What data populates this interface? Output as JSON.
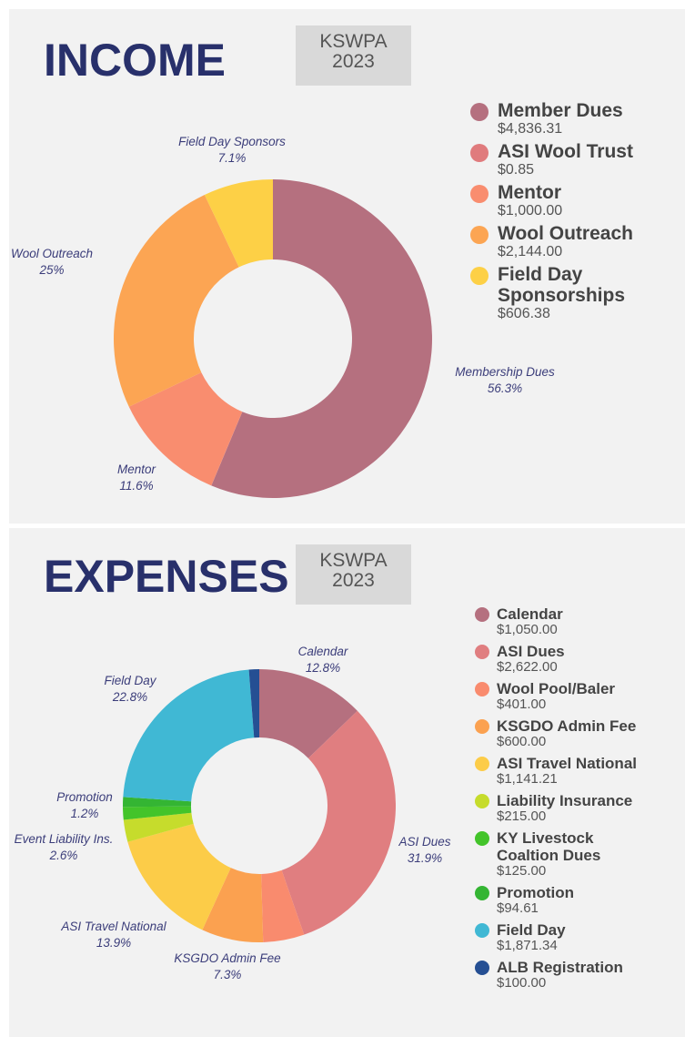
{
  "chart_data": [
    {
      "type": "pie",
      "donut": true,
      "title": "INCOME",
      "badge": [
        "KSWPA",
        "2023"
      ],
      "categories": [
        "Member Dues",
        "ASI Wool Trust",
        "Mentor",
        "Wool Outreach",
        "Field Day Sponsorships"
      ],
      "values": [
        4836.31,
        0.85,
        1000.0,
        2144.0,
        606.38
      ],
      "value_labels": [
        "$4,836.31",
        "$0.85",
        "$1,000.00",
        "$2,144.00",
        "$606.38"
      ],
      "colors": [
        "#b5707f",
        "#e07b7d",
        "#f98d6f",
        "#fca553",
        "#fdd046"
      ],
      "slice_names": [
        "Membership Dues",
        null,
        "Mentor",
        "Wool Outreach",
        "Field Day Sponsors"
      ],
      "slice_percents": [
        56.3,
        null,
        11.6,
        25,
        7.1
      ],
      "slice_percent_labels": [
        "56.3%",
        null,
        "11.6%",
        "25%",
        "7.1%"
      ]
    },
    {
      "type": "pie",
      "donut": true,
      "title": "EXPENSES",
      "badge": [
        "KSWPA",
        "2023"
      ],
      "categories": [
        "Calendar",
        "ASI Dues",
        "Wool Pool/Baler",
        "KSGDO Admin Fee",
        "ASI Travel National",
        "Liability Insurance",
        "KY Livestock Coaltion Dues",
        "Promotion",
        "Field Day",
        "ALB Registration"
      ],
      "values": [
        1050.0,
        2622.0,
        401.0,
        600.0,
        1141.21,
        215.0,
        125.0,
        94.61,
        1871.34,
        100.0
      ],
      "value_labels": [
        "$1,050.00",
        "$2,622.00",
        "$401.00",
        "$600.00",
        "$1,141.21",
        "$215.00",
        "$125.00",
        "$94.61",
        "$1,871.34",
        "$100.00"
      ],
      "colors": [
        "#b5707f",
        "#e07e80",
        "#f98b6e",
        "#fba150",
        "#fccc48",
        "#c6dc2c",
        "#43c42a",
        "#34b533",
        "#40b8d4",
        "#254f93"
      ],
      "slice_names": [
        "Calendar",
        "ASI Dues",
        null,
        "KSGDO Admin Fee",
        "ASI Travel National",
        "Event Liability Ins.",
        null,
        "Promotion",
        "Field Day",
        null
      ],
      "slice_percents": [
        12.8,
        31.9,
        null,
        7.3,
        13.9,
        2.6,
        null,
        1.2,
        22.8,
        null
      ],
      "slice_percent_labels": [
        "12.8%",
        "31.9%",
        null,
        "7.3%",
        "13.9%",
        "2.6%",
        null,
        "1.2%",
        "22.8%",
        null
      ]
    }
  ]
}
